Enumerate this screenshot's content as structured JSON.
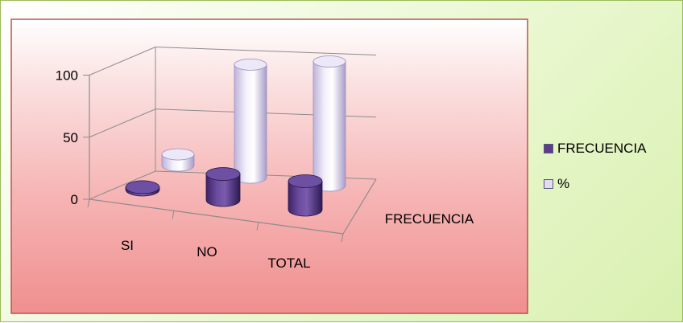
{
  "chart_data": {
    "type": "bar",
    "variant": "3d-cylinder",
    "categories": [
      "SI",
      "NO",
      "TOTAL"
    ],
    "depth_categories": [
      "FRECUENCIA"
    ],
    "series": [
      {
        "name": "FRECUENCIA",
        "values": [
          2,
          21,
          23
        ],
        "color": "#5e3c8c"
      },
      {
        "name": "%",
        "values": [
          9,
          91,
          100
        ],
        "color": "#e2dbf2"
      }
    ],
    "yticks": [
      0,
      50,
      100
    ],
    "ylim": [
      0,
      100
    ],
    "grid": true,
    "legend_position": "right"
  },
  "colors": {
    "plot_border": "#c0504d",
    "chart_border": "#9bbb59"
  }
}
